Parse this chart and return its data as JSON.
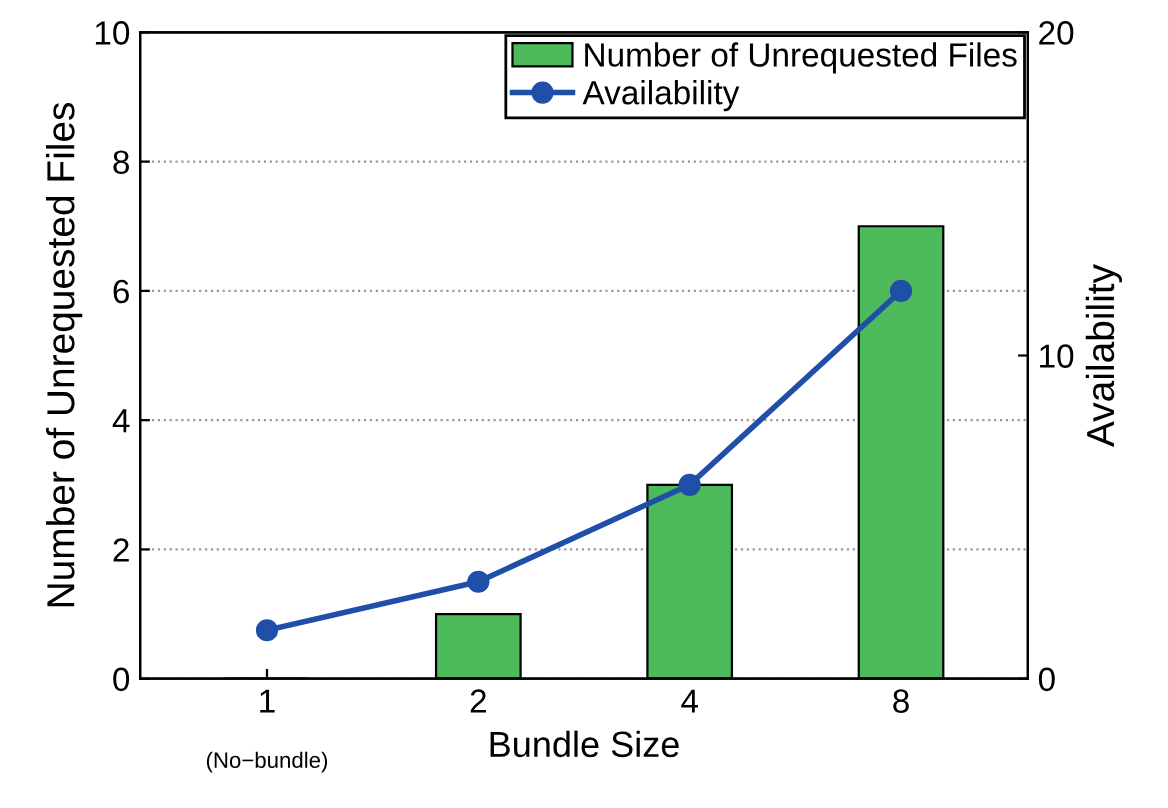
{
  "chart_data": {
    "type": "bar",
    "xlabel": "Bundle Size",
    "ylabel": "Number of Unrequested Files",
    "y2label": "Availability",
    "categories": [
      "1",
      "2",
      "4",
      "8"
    ],
    "series": [
      {
        "name": "Number of Unrequested Files",
        "color": "#4dbb5c",
        "values": [
          0,
          1,
          3,
          7
        ]
      },
      {
        "name": "Availability",
        "type": "line",
        "axis": "y2",
        "color": "#1f4fa8",
        "values": [
          1.5,
          3,
          6,
          12
        ],
        "marker": "circle",
        "line_style": "solid"
      }
    ],
    "annotations": [
      "(No−bundle)"
    ],
    "ylim": [
      0,
      10
    ],
    "yticks": [
      0,
      2,
      4,
      6,
      8,
      10
    ],
    "y2lim": [
      0,
      20
    ],
    "y2ticks": [
      0,
      10,
      20
    ],
    "grid": "y",
    "legend": "top right"
  }
}
